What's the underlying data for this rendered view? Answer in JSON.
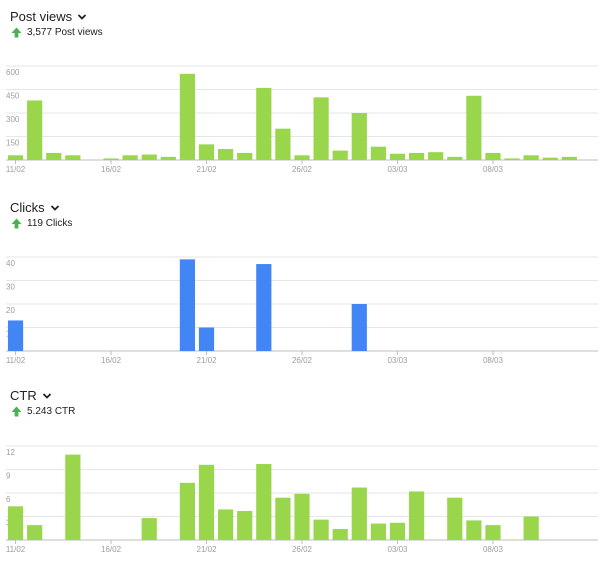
{
  "colors": {
    "green": "#9ad64c",
    "blue": "#4285f4",
    "grid": "#e6e6e6",
    "axis": "#bdbdbd",
    "arrow": "#4caf50"
  },
  "sections": [
    {
      "title": "Post views",
      "summary_value": "3,577",
      "summary_label": "Post views",
      "icon": "chevron-down-icon"
    },
    {
      "title": "Clicks",
      "summary_value": "119",
      "summary_label": "Clicks",
      "icon": "chevron-down-icon"
    },
    {
      "title": "CTR",
      "summary_value": "5.243",
      "summary_label": "CTR",
      "icon": "chevron-down-icon"
    }
  ],
  "chart_data": [
    {
      "type": "bar",
      "color": "#9ad64c",
      "ylim": [
        0,
        600
      ],
      "yticks": [
        "150",
        "300",
        "450",
        "600"
      ],
      "xticks": [
        "11/02",
        "16/02",
        "21/02",
        "26/02",
        "03/03",
        "08/03"
      ],
      "x": [
        "11/02",
        "12/02",
        "13/02",
        "14/02",
        "15/02",
        "16/02",
        "17/02",
        "18/02",
        "19/02",
        "20/02",
        "21/02",
        "22/02",
        "23/02",
        "24/02",
        "25/02",
        "26/02",
        "27/02",
        "28/02",
        "01/03",
        "02/03",
        "03/03",
        "04/03",
        "05/03",
        "06/03",
        "07/03",
        "08/03",
        "09/03",
        "10/03",
        "11/03",
        "12/03",
        "13/03"
      ],
      "values": [
        30,
        380,
        45,
        30,
        0,
        10,
        30,
        35,
        20,
        550,
        100,
        70,
        45,
        460,
        200,
        30,
        400,
        60,
        300,
        85,
        40,
        45,
        50,
        20,
        410,
        45,
        10,
        30,
        15,
        20,
        0
      ],
      "grid": true
    },
    {
      "type": "bar",
      "color": "#4285f4",
      "ylim": [
        0,
        40
      ],
      "yticks": [
        "10",
        "20",
        "30",
        "40"
      ],
      "xticks": [
        "11/02",
        "16/02",
        "21/02",
        "26/02",
        "03/03",
        "08/03"
      ],
      "x": [
        "11/02",
        "12/02",
        "13/02",
        "14/02",
        "15/02",
        "16/02",
        "17/02",
        "18/02",
        "19/02",
        "20/02",
        "21/02",
        "22/02",
        "23/02",
        "24/02",
        "25/02",
        "26/02",
        "27/02",
        "28/02",
        "01/03",
        "02/03",
        "03/03",
        "04/03",
        "05/03",
        "06/03",
        "07/03",
        "08/03",
        "09/03",
        "10/03",
        "11/03",
        "12/03",
        "13/03"
      ],
      "values": [
        13,
        0,
        0,
        0,
        0,
        0,
        0,
        0,
        0,
        39,
        10,
        0,
        0,
        37,
        0,
        0,
        0,
        0,
        20,
        0,
        0,
        0,
        0,
        0,
        0,
        0,
        0,
        0,
        0,
        0,
        0
      ],
      "grid": true
    },
    {
      "type": "bar",
      "color": "#9ad64c",
      "ylim": [
        0,
        12
      ],
      "yticks": [
        "3",
        "6",
        "9",
        "12"
      ],
      "xticks": [
        "11/02",
        "16/02",
        "21/02",
        "26/02",
        "03/03",
        "08/03"
      ],
      "x": [
        "11/02",
        "12/02",
        "13/02",
        "14/02",
        "15/02",
        "16/02",
        "17/02",
        "18/02",
        "19/02",
        "20/02",
        "21/02",
        "22/02",
        "23/02",
        "24/02",
        "25/02",
        "26/02",
        "27/02",
        "28/02",
        "01/03",
        "02/03",
        "03/03",
        "04/03",
        "05/03",
        "06/03",
        "07/03",
        "08/03",
        "09/03",
        "10/03",
        "11/03",
        "12/03",
        "13/03"
      ],
      "values": [
        4.3,
        1.9,
        0,
        10.9,
        0,
        0,
        0,
        2.8,
        0,
        7.3,
        9.6,
        3.9,
        3.7,
        9.7,
        5.4,
        5.9,
        2.6,
        1.4,
        6.7,
        2.1,
        2.2,
        6.2,
        0,
        5.4,
        2.5,
        1.9,
        0,
        3.0,
        0,
        0,
        0
      ],
      "grid": true
    }
  ]
}
